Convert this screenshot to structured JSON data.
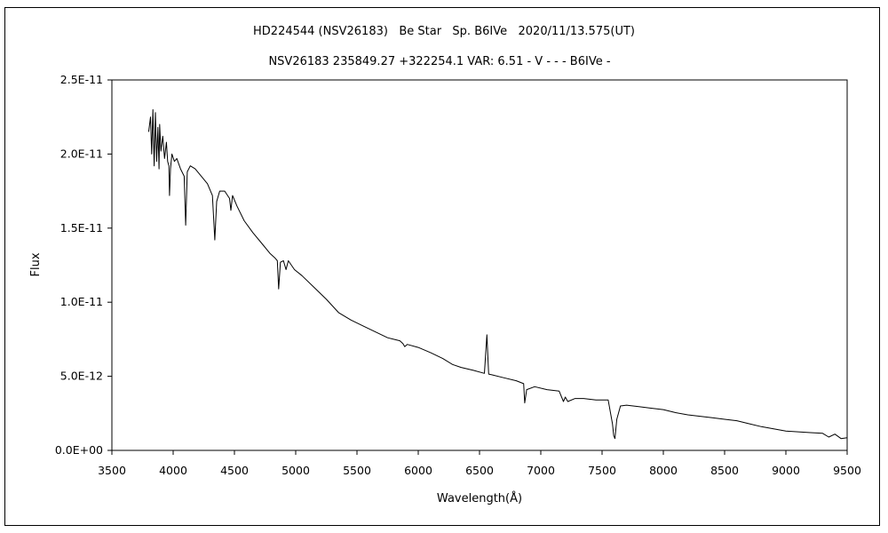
{
  "chart_data": {
    "type": "line",
    "title": "HD224544 (NSV26183)   Be Star   Sp. B6IVe   2020/11/13.575(UT)",
    "subtitle": "NSV26183 235849.27 +322254.1 VAR: 6.51 - V - - - B6IVe -",
    "xlabel": "Wavelength(Å)",
    "ylabel": "Flux",
    "xlim": [
      3500,
      9500
    ],
    "ylim": [
      0,
      2.5e-11
    ],
    "x_ticks": [
      3500,
      4000,
      4500,
      5000,
      5500,
      6000,
      6500,
      7000,
      7500,
      8000,
      8500,
      9000,
      9500
    ],
    "x_tick_labels": [
      "3500",
      "4000",
      "4500",
      "5000",
      "5500",
      "6000",
      "6500",
      "7000",
      "7500",
      "8000",
      "8500",
      "9000",
      "9500"
    ],
    "y_ticks": [
      0,
      5e-12,
      1e-11,
      1.5e-11,
      2e-11,
      2.5e-11
    ],
    "y_tick_labels": [
      "0.0E+00",
      "5.0E-12",
      "1.0E-11",
      "1.5E-11",
      "2.0E-11",
      "2.5E-11"
    ],
    "grid": false,
    "legend": "none",
    "series": [
      {
        "color": "#000000",
        "x": [
          3800,
          3815,
          3825,
          3835,
          3845,
          3855,
          3865,
          3875,
          3885,
          3890,
          3900,
          3915,
          3930,
          3945,
          3955,
          3965,
          3970,
          3978,
          3990,
          4010,
          4030,
          4060,
          4090,
          4102,
          4115,
          4140,
          4180,
          4230,
          4280,
          4320,
          4340,
          4355,
          4380,
          4420,
          4460,
          4471,
          4485,
          4520,
          4580,
          4650,
          4720,
          4790,
          4830,
          4850,
          4861,
          4875,
          4900,
          4921,
          4940,
          4990,
          5050,
          5150,
          5250,
          5350,
          5450,
          5550,
          5650,
          5750,
          5850,
          5875,
          5890,
          5910,
          6000,
          6100,
          6200,
          6280,
          6350,
          6450,
          6540,
          6560,
          6575,
          6600,
          6700,
          6800,
          6860,
          6869,
          6885,
          6950,
          7050,
          7150,
          7185,
          7200,
          7220,
          7280,
          7350,
          7450,
          7550,
          7585,
          7595,
          7605,
          7620,
          7650,
          7700,
          7800,
          7900,
          8000,
          8100,
          8200,
          8300,
          8400,
          8500,
          8600,
          8700,
          8800,
          8900,
          9000,
          9100,
          9200,
          9300,
          9350,
          9400,
          9450,
          9500
        ],
        "y": [
          2.15e-11,
          2.25e-11,
          2e-11,
          2.3e-11,
          1.92e-11,
          2.28e-11,
          1.95e-11,
          2.18e-11,
          1.9e-11,
          2.2e-11,
          2.02e-11,
          2.12e-11,
          1.97e-11,
          2.08e-11,
          1.95e-11,
          1.92e-11,
          1.72e-11,
          1.9e-11,
          2e-11,
          1.95e-11,
          1.97e-11,
          1.9e-11,
          1.85e-11,
          1.52e-11,
          1.88e-11,
          1.92e-11,
          1.9e-11,
          1.85e-11,
          1.8e-11,
          1.72e-11,
          1.42e-11,
          1.68e-11,
          1.75e-11,
          1.75e-11,
          1.7e-11,
          1.62e-11,
          1.72e-11,
          1.65e-11,
          1.55e-11,
          1.47e-11,
          1.4e-11,
          1.33e-11,
          1.3e-11,
          1.28e-11,
          1.09e-11,
          1.27e-11,
          1.28e-11,
          1.22e-11,
          1.28e-11,
          1.22e-11,
          1.18e-11,
          1.1e-11,
          1.02e-11,
          9.3e-12,
          8.8e-12,
          8.4e-12,
          8e-12,
          7.6e-12,
          7.4e-12,
          7.2e-12,
          7e-12,
          7.15e-12,
          6.95e-12,
          6.6e-12,
          6.2e-12,
          5.8e-12,
          5.6e-12,
          5.4e-12,
          5.2e-12,
          7.8e-12,
          5.15e-12,
          5.1e-12,
          4.9e-12,
          4.7e-12,
          4.5e-12,
          3.2e-12,
          4.1e-12,
          4.3e-12,
          4.1e-12,
          4e-12,
          3.3e-12,
          3.6e-12,
          3.3e-12,
          3.5e-12,
          3.5e-12,
          3.4e-12,
          3.4e-12,
          1.8e-12,
          1e-12,
          8e-13,
          2.1e-12,
          3e-12,
          3.05e-12,
          2.95e-12,
          2.85e-12,
          2.75e-12,
          2.55e-12,
          2.4e-12,
          2.3e-12,
          2.2e-12,
          2.1e-12,
          2e-12,
          1.8e-12,
          1.6e-12,
          1.45e-12,
          1.3e-12,
          1.25e-12,
          1.2e-12,
          1.15e-12,
          9e-13,
          1.1e-12,
          8e-13,
          8.5e-13
        ]
      }
    ]
  }
}
